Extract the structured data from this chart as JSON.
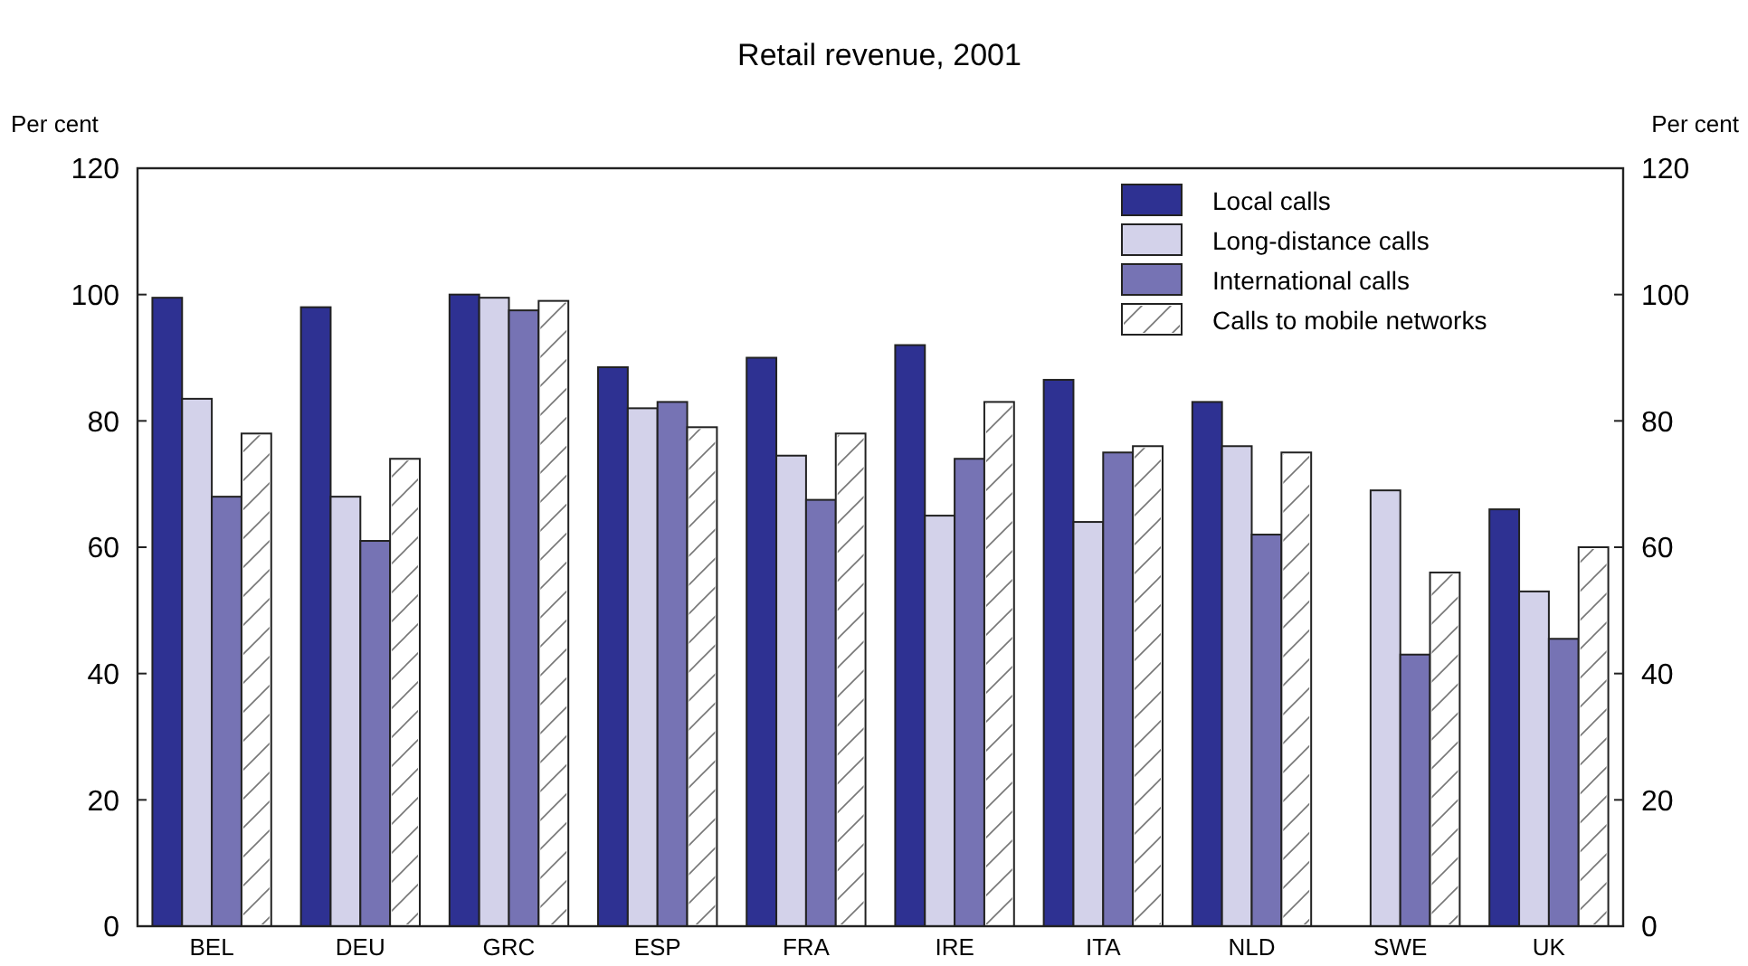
{
  "chart_data": {
    "type": "bar",
    "title": "Retail revenue, 2001",
    "ylabel": "Per cent",
    "y2label": "Per cent",
    "categories": [
      "BEL",
      "DEU",
      "GRC",
      "ESP",
      "FRA",
      "IRE",
      "ITA",
      "NLD",
      "SWE",
      "UK"
    ],
    "series": [
      {
        "name": "Local calls",
        "color": "#2e3192",
        "values": [
          99.5,
          98,
          100,
          88.5,
          90,
          92,
          86.5,
          83,
          null,
          66
        ]
      },
      {
        "name": "Long-distance calls",
        "color": "#d3d2ea",
        "values": [
          83.5,
          68,
          99.5,
          82,
          74.5,
          65,
          64,
          76,
          69,
          53
        ]
      },
      {
        "name": "International calls",
        "color": "#7673b4",
        "values": [
          68,
          61,
          97.5,
          83,
          67.5,
          74,
          75,
          62,
          43,
          45.5
        ]
      },
      {
        "name": "Calls to mobile networks",
        "color": "#ffffff",
        "values": [
          78,
          74,
          99,
          79,
          78,
          83,
          76,
          75,
          56,
          60
        ]
      }
    ],
    "ylim": [
      0,
      120
    ],
    "yticks": [
      0,
      20,
      40,
      60,
      80,
      100,
      120
    ],
    "y2lim": [
      0,
      120
    ],
    "y2ticks": [
      0,
      20,
      40,
      60,
      80,
      100,
      120
    ],
    "grid": false,
    "legend": "top right"
  }
}
